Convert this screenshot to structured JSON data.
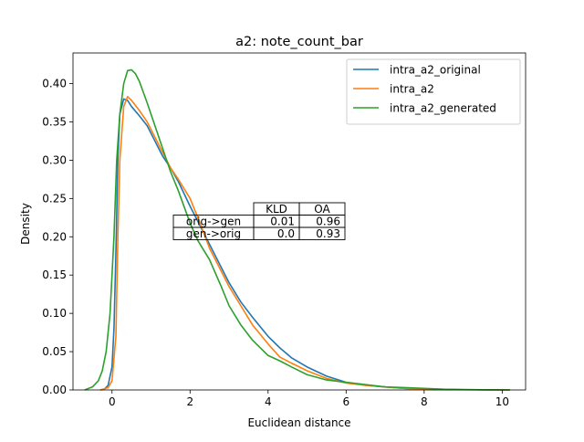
{
  "chart_data": {
    "type": "line",
    "title": "a2: note_count_bar",
    "xlabel": "Euclidean distance",
    "ylabel": "Density",
    "xlim": [
      -1.0,
      10.6
    ],
    "ylim": [
      0.0,
      0.44
    ],
    "xticks": [
      0,
      2,
      4,
      6,
      8,
      10
    ],
    "yticks": [
      0.0,
      0.05,
      0.1,
      0.15,
      0.2,
      0.25,
      0.3,
      0.35,
      0.4
    ],
    "ytick_labels": [
      "0.00",
      "0.05",
      "0.10",
      "0.15",
      "0.20",
      "0.25",
      "0.30",
      "0.35",
      "0.40"
    ],
    "grid": false,
    "legend_position": "top-right",
    "series": [
      {
        "name": "intra_a2_original",
        "color": "#1f77b4",
        "points": [
          [
            -0.3,
            0.0
          ],
          [
            -0.2,
            0.001
          ],
          [
            -0.1,
            0.006
          ],
          [
            0.0,
            0.03
          ],
          [
            0.05,
            0.08
          ],
          [
            0.1,
            0.18
          ],
          [
            0.15,
            0.3
          ],
          [
            0.2,
            0.36
          ],
          [
            0.3,
            0.38
          ],
          [
            0.4,
            0.378
          ],
          [
            0.5,
            0.37
          ],
          [
            0.7,
            0.358
          ],
          [
            0.9,
            0.345
          ],
          [
            1.1,
            0.325
          ],
          [
            1.3,
            0.305
          ],
          [
            1.5,
            0.29
          ],
          [
            1.7,
            0.272
          ],
          [
            2.0,
            0.24
          ],
          [
            2.2,
            0.22
          ],
          [
            2.5,
            0.19
          ],
          [
            2.8,
            0.16
          ],
          [
            3.0,
            0.14
          ],
          [
            3.3,
            0.115
          ],
          [
            3.6,
            0.095
          ],
          [
            4.0,
            0.07
          ],
          [
            4.3,
            0.055
          ],
          [
            4.6,
            0.042
          ],
          [
            5.0,
            0.03
          ],
          [
            5.5,
            0.018
          ],
          [
            6.0,
            0.01
          ],
          [
            6.5,
            0.006
          ],
          [
            7.0,
            0.004
          ],
          [
            7.5,
            0.002
          ],
          [
            8.0,
            0.001
          ],
          [
            9.0,
            0.0003
          ],
          [
            10.2,
            0.0
          ]
        ]
      },
      {
        "name": "intra_a2",
        "color": "#ff7f0e",
        "points": [
          [
            -0.3,
            0.0
          ],
          [
            -0.1,
            0.003
          ],
          [
            0.0,
            0.012
          ],
          [
            0.1,
            0.07
          ],
          [
            0.15,
            0.2
          ],
          [
            0.2,
            0.3
          ],
          [
            0.3,
            0.37
          ],
          [
            0.4,
            0.383
          ],
          [
            0.5,
            0.378
          ],
          [
            0.7,
            0.365
          ],
          [
            0.9,
            0.35
          ],
          [
            1.1,
            0.33
          ],
          [
            1.3,
            0.31
          ],
          [
            1.5,
            0.29
          ],
          [
            1.7,
            0.275
          ],
          [
            2.0,
            0.25
          ],
          [
            2.2,
            0.225
          ],
          [
            2.5,
            0.185
          ],
          [
            2.8,
            0.155
          ],
          [
            3.0,
            0.135
          ],
          [
            3.3,
            0.11
          ],
          [
            3.6,
            0.085
          ],
          [
            4.0,
            0.06
          ],
          [
            4.3,
            0.043
          ],
          [
            4.6,
            0.035
          ],
          [
            5.0,
            0.025
          ],
          [
            5.5,
            0.015
          ],
          [
            6.0,
            0.009
          ],
          [
            6.5,
            0.006
          ],
          [
            7.0,
            0.004
          ],
          [
            7.5,
            0.002
          ],
          [
            8.0,
            0.001
          ],
          [
            9.0,
            0.0003
          ],
          [
            10.2,
            0.0
          ]
        ]
      },
      {
        "name": "intra_a2_generated",
        "color": "#2ca02c",
        "points": [
          [
            -0.7,
            0.0
          ],
          [
            -0.5,
            0.004
          ],
          [
            -0.35,
            0.012
          ],
          [
            -0.25,
            0.025
          ],
          [
            -0.15,
            0.05
          ],
          [
            -0.05,
            0.1
          ],
          [
            0.05,
            0.2
          ],
          [
            0.12,
            0.3
          ],
          [
            0.2,
            0.36
          ],
          [
            0.3,
            0.4
          ],
          [
            0.4,
            0.417
          ],
          [
            0.5,
            0.418
          ],
          [
            0.6,
            0.413
          ],
          [
            0.7,
            0.403
          ],
          [
            0.9,
            0.375
          ],
          [
            1.1,
            0.345
          ],
          [
            1.3,
            0.315
          ],
          [
            1.5,
            0.285
          ],
          [
            1.7,
            0.26
          ],
          [
            2.0,
            0.218
          ],
          [
            2.2,
            0.195
          ],
          [
            2.5,
            0.17
          ],
          [
            2.8,
            0.135
          ],
          [
            3.0,
            0.11
          ],
          [
            3.3,
            0.085
          ],
          [
            3.6,
            0.065
          ],
          [
            4.0,
            0.045
          ],
          [
            4.3,
            0.038
          ],
          [
            4.6,
            0.03
          ],
          [
            5.0,
            0.02
          ],
          [
            5.5,
            0.013
          ],
          [
            6.0,
            0.01
          ],
          [
            6.5,
            0.007
          ],
          [
            7.0,
            0.004
          ],
          [
            7.5,
            0.003
          ],
          [
            8.0,
            0.002
          ],
          [
            8.5,
            0.001
          ],
          [
            9.5,
            0.0002
          ],
          [
            10.2,
            0.0
          ]
        ]
      }
    ],
    "table": {
      "columns": [
        "KLD",
        "OA"
      ],
      "rows": [
        {
          "label": "orig->gen",
          "values": [
            "0.01",
            "0.96"
          ]
        },
        {
          "label": "gen->orig",
          "values": [
            "0.0",
            "0.93"
          ]
        }
      ]
    }
  }
}
